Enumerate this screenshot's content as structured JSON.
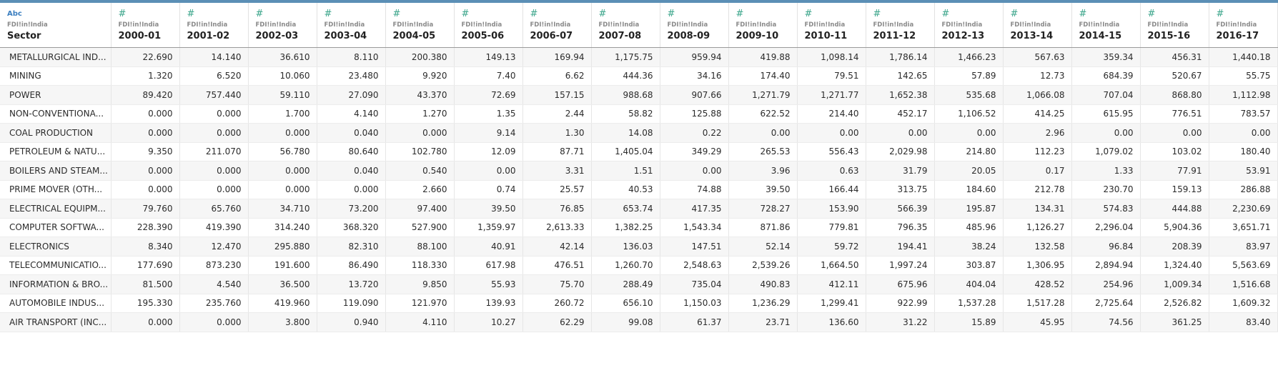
{
  "columns": [
    {
      "type": "Abc",
      "source": "FDI!in!India",
      "name": "Sector",
      "kind": "text"
    },
    {
      "type": "#",
      "source": "FDI!in!India",
      "name": "2000-01",
      "kind": "num"
    },
    {
      "type": "#",
      "source": "FDI!in!India",
      "name": "2001-02",
      "kind": "num"
    },
    {
      "type": "#",
      "source": "FDI!in!India",
      "name": "2002-03",
      "kind": "num"
    },
    {
      "type": "#",
      "source": "FDI!in!India",
      "name": "2003-04",
      "kind": "num"
    },
    {
      "type": "#",
      "source": "FDI!in!India",
      "name": "2004-05",
      "kind": "num"
    },
    {
      "type": "#",
      "source": "FDI!in!India",
      "name": "2005-06",
      "kind": "num"
    },
    {
      "type": "#",
      "source": "FDI!in!India",
      "name": "2006-07",
      "kind": "num"
    },
    {
      "type": "#",
      "source": "FDI!in!India",
      "name": "2007-08",
      "kind": "num"
    },
    {
      "type": "#",
      "source": "FDI!in!India",
      "name": "2008-09",
      "kind": "num"
    },
    {
      "type": "#",
      "source": "FDI!in!India",
      "name": "2009-10",
      "kind": "num"
    },
    {
      "type": "#",
      "source": "FDI!in!India",
      "name": "2010-11",
      "kind": "num"
    },
    {
      "type": "#",
      "source": "FDI!in!India",
      "name": "2011-12",
      "kind": "num"
    },
    {
      "type": "#",
      "source": "FDI!in!India",
      "name": "2012-13",
      "kind": "num"
    },
    {
      "type": "#",
      "source": "FDI!in!India",
      "name": "2013-14",
      "kind": "num"
    },
    {
      "type": "#",
      "source": "FDI!in!India",
      "name": "2014-15",
      "kind": "num"
    },
    {
      "type": "#",
      "source": "FDI!in!India",
      "name": "2015-16",
      "kind": "num"
    },
    {
      "type": "#",
      "source": "FDI!in!India",
      "name": "2016-17",
      "kind": "num"
    }
  ],
  "rows": [
    [
      "METALLURGICAL IND...",
      "22.690",
      "14.140",
      "36.610",
      "8.110",
      "200.380",
      "149.13",
      "169.94",
      "1,175.75",
      "959.94",
      "419.88",
      "1,098.14",
      "1,786.14",
      "1,466.23",
      "567.63",
      "359.34",
      "456.31",
      "1,440.18"
    ],
    [
      "MINING",
      "1.320",
      "6.520",
      "10.060",
      "23.480",
      "9.920",
      "7.40",
      "6.62",
      "444.36",
      "34.16",
      "174.40",
      "79.51",
      "142.65",
      "57.89",
      "12.73",
      "684.39",
      "520.67",
      "55.75"
    ],
    [
      "POWER",
      "89.420",
      "757.440",
      "59.110",
      "27.090",
      "43.370",
      "72.69",
      "157.15",
      "988.68",
      "907.66",
      "1,271.79",
      "1,271.77",
      "1,652.38",
      "535.68",
      "1,066.08",
      "707.04",
      "868.80",
      "1,112.98"
    ],
    [
      "NON-CONVENTIONA...",
      "0.000",
      "0.000",
      "1.700",
      "4.140",
      "1.270",
      "1.35",
      "2.44",
      "58.82",
      "125.88",
      "622.52",
      "214.40",
      "452.17",
      "1,106.52",
      "414.25",
      "615.95",
      "776.51",
      "783.57"
    ],
    [
      "COAL PRODUCTION",
      "0.000",
      "0.000",
      "0.000",
      "0.040",
      "0.000",
      "9.14",
      "1.30",
      "14.08",
      "0.22",
      "0.00",
      "0.00",
      "0.00",
      "0.00",
      "2.96",
      "0.00",
      "0.00",
      "0.00"
    ],
    [
      "PETROLEUM & NATU...",
      "9.350",
      "211.070",
      "56.780",
      "80.640",
      "102.780",
      "12.09",
      "87.71",
      "1,405.04",
      "349.29",
      "265.53",
      "556.43",
      "2,029.98",
      "214.80",
      "112.23",
      "1,079.02",
      "103.02",
      "180.40"
    ],
    [
      "BOILERS AND STEAM...",
      "0.000",
      "0.000",
      "0.000",
      "0.040",
      "0.540",
      "0.00",
      "3.31",
      "1.51",
      "0.00",
      "3.96",
      "0.63",
      "31.79",
      "20.05",
      "0.17",
      "1.33",
      "77.91",
      "53.91"
    ],
    [
      "PRIME MOVER (OTH...",
      "0.000",
      "0.000",
      "0.000",
      "0.000",
      "2.660",
      "0.74",
      "25.57",
      "40.53",
      "74.88",
      "39.50",
      "166.44",
      "313.75",
      "184.60",
      "212.78",
      "230.70",
      "159.13",
      "286.88"
    ],
    [
      "ELECTRICAL EQUIPM...",
      "79.760",
      "65.760",
      "34.710",
      "73.200",
      "97.400",
      "39.50",
      "76.85",
      "653.74",
      "417.35",
      "728.27",
      "153.90",
      "566.39",
      "195.87",
      "134.31",
      "574.83",
      "444.88",
      "2,230.69"
    ],
    [
      "COMPUTER SOFTWA...",
      "228.390",
      "419.390",
      "314.240",
      "368.320",
      "527.900",
      "1,359.97",
      "2,613.33",
      "1,382.25",
      "1,543.34",
      "871.86",
      "779.81",
      "796.35",
      "485.96",
      "1,126.27",
      "2,296.04",
      "5,904.36",
      "3,651.71"
    ],
    [
      "ELECTRONICS",
      "8.340",
      "12.470",
      "295.880",
      "82.310",
      "88.100",
      "40.91",
      "42.14",
      "136.03",
      "147.51",
      "52.14",
      "59.72",
      "194.41",
      "38.24",
      "132.58",
      "96.84",
      "208.39",
      "83.97"
    ],
    [
      "TELECOMMUNICATIO...",
      "177.690",
      "873.230",
      "191.600",
      "86.490",
      "118.330",
      "617.98",
      "476.51",
      "1,260.70",
      "2,548.63",
      "2,539.26",
      "1,664.50",
      "1,997.24",
      "303.87",
      "1,306.95",
      "2,894.94",
      "1,324.40",
      "5,563.69"
    ],
    [
      "INFORMATION & BRO...",
      "81.500",
      "4.540",
      "36.500",
      "13.720",
      "9.850",
      "55.93",
      "75.70",
      "288.49",
      "735.04",
      "490.83",
      "412.11",
      "675.96",
      "404.04",
      "428.52",
      "254.96",
      "1,009.34",
      "1,516.68"
    ],
    [
      "AUTOMOBILE INDUS...",
      "195.330",
      "235.760",
      "419.960",
      "119.090",
      "121.970",
      "139.93",
      "260.72",
      "656.10",
      "1,150.03",
      "1,236.29",
      "1,299.41",
      "922.99",
      "1,537.28",
      "1,517.28",
      "2,725.64",
      "2,526.82",
      "1,609.32"
    ],
    [
      "AIR TRANSPORT (INC...",
      "0.000",
      "0.000",
      "3.800",
      "0.940",
      "4.110",
      "10.27",
      "62.29",
      "99.08",
      "61.37",
      "23.71",
      "136.60",
      "31.22",
      "15.89",
      "45.95",
      "74.56",
      "361.25",
      "83.40"
    ]
  ]
}
